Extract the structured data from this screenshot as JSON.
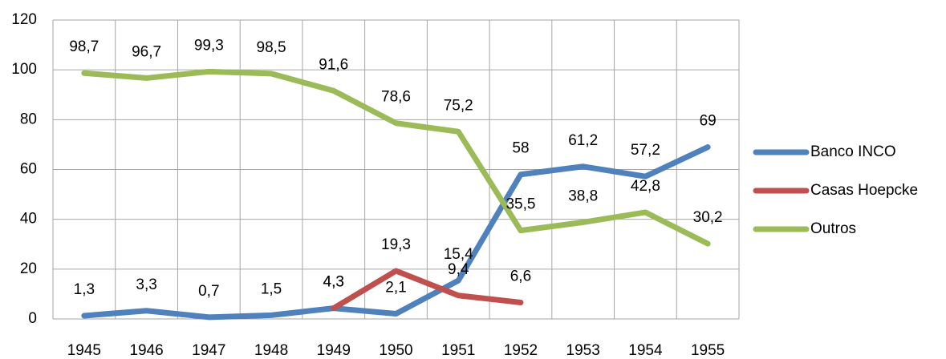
{
  "chart_data": {
    "type": "line",
    "categories": [
      "1945",
      "1946",
      "1947",
      "1948",
      "1949",
      "1950",
      "1951",
      "1952",
      "1953",
      "1954",
      "1955"
    ],
    "series": [
      {
        "name": "Banco INCO",
        "color": "#4f81bd",
        "values": [
          1.3,
          3.3,
          0.7,
          1.5,
          4.3,
          2.1,
          15.4,
          58,
          61.2,
          57.2,
          69
        ],
        "value_labels": [
          "1,3",
          "3,3",
          "0,7",
          "1,5",
          "4,3",
          "2,1",
          "15,4",
          "58",
          "61,2",
          "57,2",
          "69"
        ]
      },
      {
        "name": "Casas Hoepcke",
        "color": "#c0504d",
        "values": [
          null,
          null,
          null,
          null,
          4.3,
          19.3,
          9.4,
          6.6,
          null,
          null,
          null
        ],
        "value_labels": [
          null,
          null,
          null,
          null,
          "4,3",
          "19,3",
          "9,4",
          "6,6",
          null,
          null,
          null
        ]
      },
      {
        "name": "Outros",
        "color": "#9bbb59",
        "values": [
          98.7,
          96.7,
          99.3,
          98.5,
          91.6,
          78.6,
          75.2,
          35.5,
          38.8,
          42.8,
          30.2
        ],
        "value_labels": [
          "98,7",
          "96,7",
          "99,3",
          "98,5",
          "91,6",
          "78,6",
          "75,2",
          "35,5",
          "38,8",
          "42,8",
          "30,2"
        ]
      }
    ],
    "ylim": [
      0,
      120
    ],
    "yticks": [
      0,
      20,
      40,
      60,
      80,
      100,
      120
    ],
    "grid": true,
    "legend": "right"
  }
}
